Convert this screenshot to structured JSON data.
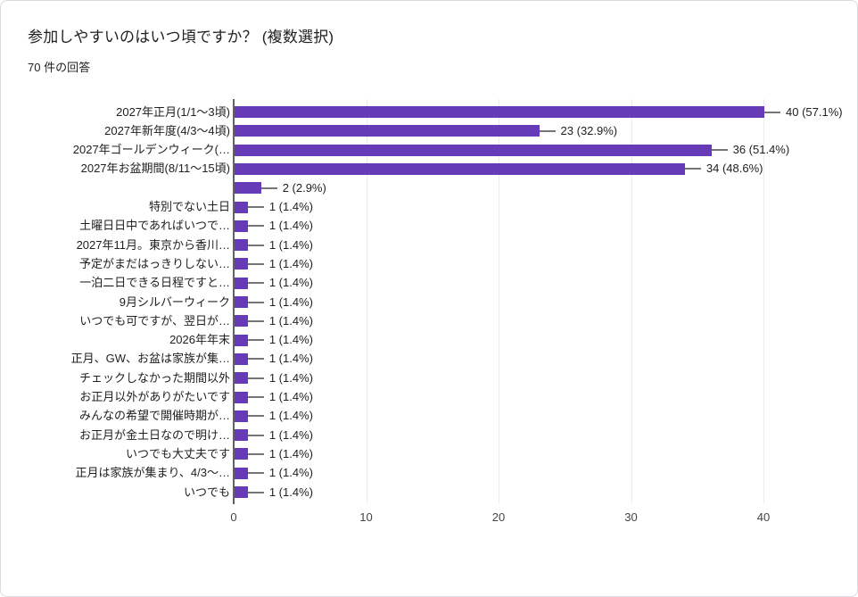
{
  "card": {
    "title": "参加しやすいのはいつ頃ですか？ (複数選択)",
    "subtitle": "70 件の回答"
  },
  "colors": {
    "bar": "#673ab7",
    "axis": "#5f6368",
    "grid": "#ececec",
    "leader": "#757575",
    "label_text": "#212121",
    "tick_text": "#444444",
    "card_border": "#dadce0"
  },
  "chart_data": {
    "type": "bar",
    "orientation": "horizontal",
    "title": "参加しやすいのはいつ頃ですか？ (複数選択)",
    "subtitle": "70 件の回答",
    "legend": "none",
    "grid": true,
    "xlim": [
      0,
      45
    ],
    "x_ticks": [
      "0",
      "10",
      "20",
      "30",
      "40"
    ],
    "x_tick_values": [
      0,
      10,
      20,
      30,
      40
    ],
    "bar_color": "#673ab7",
    "categories": [
      "2027年正月(1/1〜3頃)",
      "2027年新年度(4/3〜4頃)",
      "2027年ゴールデンウィーク(…",
      "2027年お盆期間(8/11〜15頃)",
      "",
      "特別でない土日",
      "土曜日日中であればいつで…",
      "2027年11月。東京から香川…",
      "予定がまだはっきりしない…",
      "一泊二日できる日程ですと…",
      "9月シルバーウィーク",
      "いつでも可ですが、翌日が…",
      "2026年年末",
      "正月、GW、お盆は家族が集…",
      "チェックしなかった期間以外",
      "お正月以外がありがたいです",
      "みんなの希望で開催時期が…",
      "お正月が金土日なので明け…",
      "いつでも大丈夫です",
      "正月は家族が集まり、4/3〜…",
      "いつでも"
    ],
    "values": [
      40,
      23,
      36,
      34,
      2,
      1,
      1,
      1,
      1,
      1,
      1,
      1,
      1,
      1,
      1,
      1,
      1,
      1,
      1,
      1,
      1
    ],
    "value_labels": [
      "40 (57.1%)",
      "23 (32.9%)",
      "36 (51.4%)",
      "34 (48.6%)",
      "2 (2.9%)",
      "1 (1.4%)",
      "1 (1.4%)",
      "1 (1.4%)",
      "1 (1.4%)",
      "1 (1.4%)",
      "1 (1.4%)",
      "1 (1.4%)",
      "1 (1.4%)",
      "1 (1.4%)",
      "1 (1.4%)",
      "1 (1.4%)",
      "1 (1.4%)",
      "1 (1.4%)",
      "1 (1.4%)",
      "1 (1.4%)",
      "1 (1.4%)"
    ]
  }
}
